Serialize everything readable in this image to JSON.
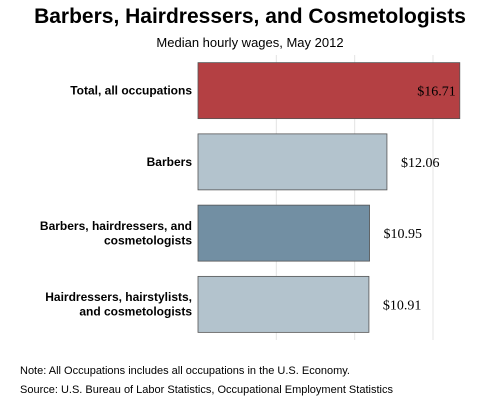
{
  "chart_data": {
    "type": "bar",
    "orientation": "horizontal",
    "title": "Barbers, Hairdressers, and Cosmetologists",
    "subtitle": "Median hourly wages, May 2012",
    "categories": [
      "Total, all occupations",
      "Barbers",
      "Barbers, hairdressers, and cosmetologists",
      "Hairdressers, hairstylists, and cosmetologists"
    ],
    "category_lines": [
      [
        "Total, all occupations"
      ],
      [
        "Barbers"
      ],
      [
        "Barbers, hairdressers, and",
        "cosmetologists"
      ],
      [
        "Hairdressers, hairstylists,",
        "and cosmetologists"
      ]
    ],
    "values": [
      16.71,
      12.06,
      10.95,
      10.91
    ],
    "value_labels": [
      "$16.71",
      "$12.06",
      "$10.95",
      "$10.91"
    ],
    "bar_colors": [
      "#b44043",
      "#b3c3cd",
      "#728fa3",
      "#b3c3cd"
    ],
    "xlim": [
      0,
      18
    ],
    "gridlines": [
      5,
      10,
      15
    ],
    "grid": true,
    "legend": "none"
  },
  "notes": {
    "note": "Note: All Occupations includes all occupations in the U.S. Economy.",
    "source": "Source: U.S. Bureau of Labor Statistics, Occupational Employment Statistics"
  }
}
